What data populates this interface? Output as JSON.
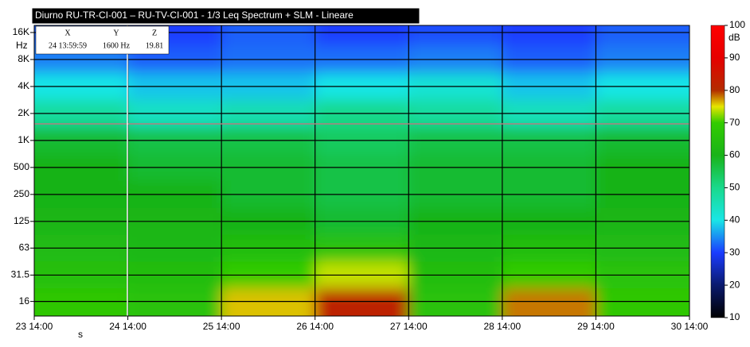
{
  "chart_data": {
    "type": "heatmap",
    "title": "Diurno RU-TR-CI-001 – RU-TV-CI-001 - 1/3 Leq Spectrum + SLM - Lineare",
    "x": [
      "23 14:00",
      "24 14:00",
      "25 14:00",
      "26 14:00",
      "27 14:00",
      "28 14:00",
      "29 14:00",
      "30 14:00"
    ],
    "x_label": "s",
    "y_label": "Hz",
    "y_log": true,
    "ylim": [
      11,
      19200
    ],
    "yticks": [
      {
        "value": 16000,
        "label": "16K"
      },
      {
        "value": 8000,
        "label": "8K"
      },
      {
        "value": 4000,
        "label": "4K"
      },
      {
        "value": 2000,
        "label": "2K"
      },
      {
        "value": 1000,
        "label": "1K"
      },
      500,
      250,
      125,
      63,
      31.5,
      16
    ],
    "grid": true,
    "values": [
      [
        32,
        30,
        32,
        30,
        31,
        30,
        32
      ],
      [
        34,
        32,
        33,
        33,
        34,
        32,
        34
      ],
      [
        40,
        38,
        38,
        40,
        42,
        38,
        40
      ],
      [
        48,
        44,
        46,
        50,
        48,
        45,
        48
      ],
      [
        58,
        56,
        56,
        54,
        56,
        56,
        58
      ],
      [
        60,
        58,
        58,
        56,
        58,
        58,
        60
      ],
      [
        60,
        60,
        58,
        56,
        58,
        58,
        60
      ],
      [
        61,
        61,
        60,
        58,
        60,
        60,
        61
      ],
      [
        63,
        62,
        64,
        66,
        62,
        64,
        63
      ],
      [
        65,
        64,
        70,
        74,
        64,
        70,
        66
      ],
      [
        68,
        66,
        76,
        82,
        66,
        78,
        68
      ]
    ],
    "colorbar_label": "dB",
    "zlim": [
      10,
      100
    ],
    "zticks": [
      10,
      20,
      30,
      40,
      50,
      60,
      70,
      80,
      90,
      100
    ],
    "colorscale": [
      [
        10,
        "#000000"
      ],
      [
        20,
        "#0a1a6e"
      ],
      [
        30,
        "#1a3cff"
      ],
      [
        40,
        "#19e6e6"
      ],
      [
        50,
        "#19d98c"
      ],
      [
        60,
        "#19b319"
      ],
      [
        70,
        "#33cc00"
      ],
      [
        75,
        "#e6e600"
      ],
      [
        80,
        "#b32d00"
      ],
      [
        90,
        "#e60000"
      ],
      [
        100,
        "#ff0000"
      ]
    ],
    "cursor": {
      "headers": [
        "X",
        "Y",
        "Z"
      ],
      "values": [
        "24 13:59:59",
        "1600 Hz",
        "19.81"
      ]
    }
  }
}
